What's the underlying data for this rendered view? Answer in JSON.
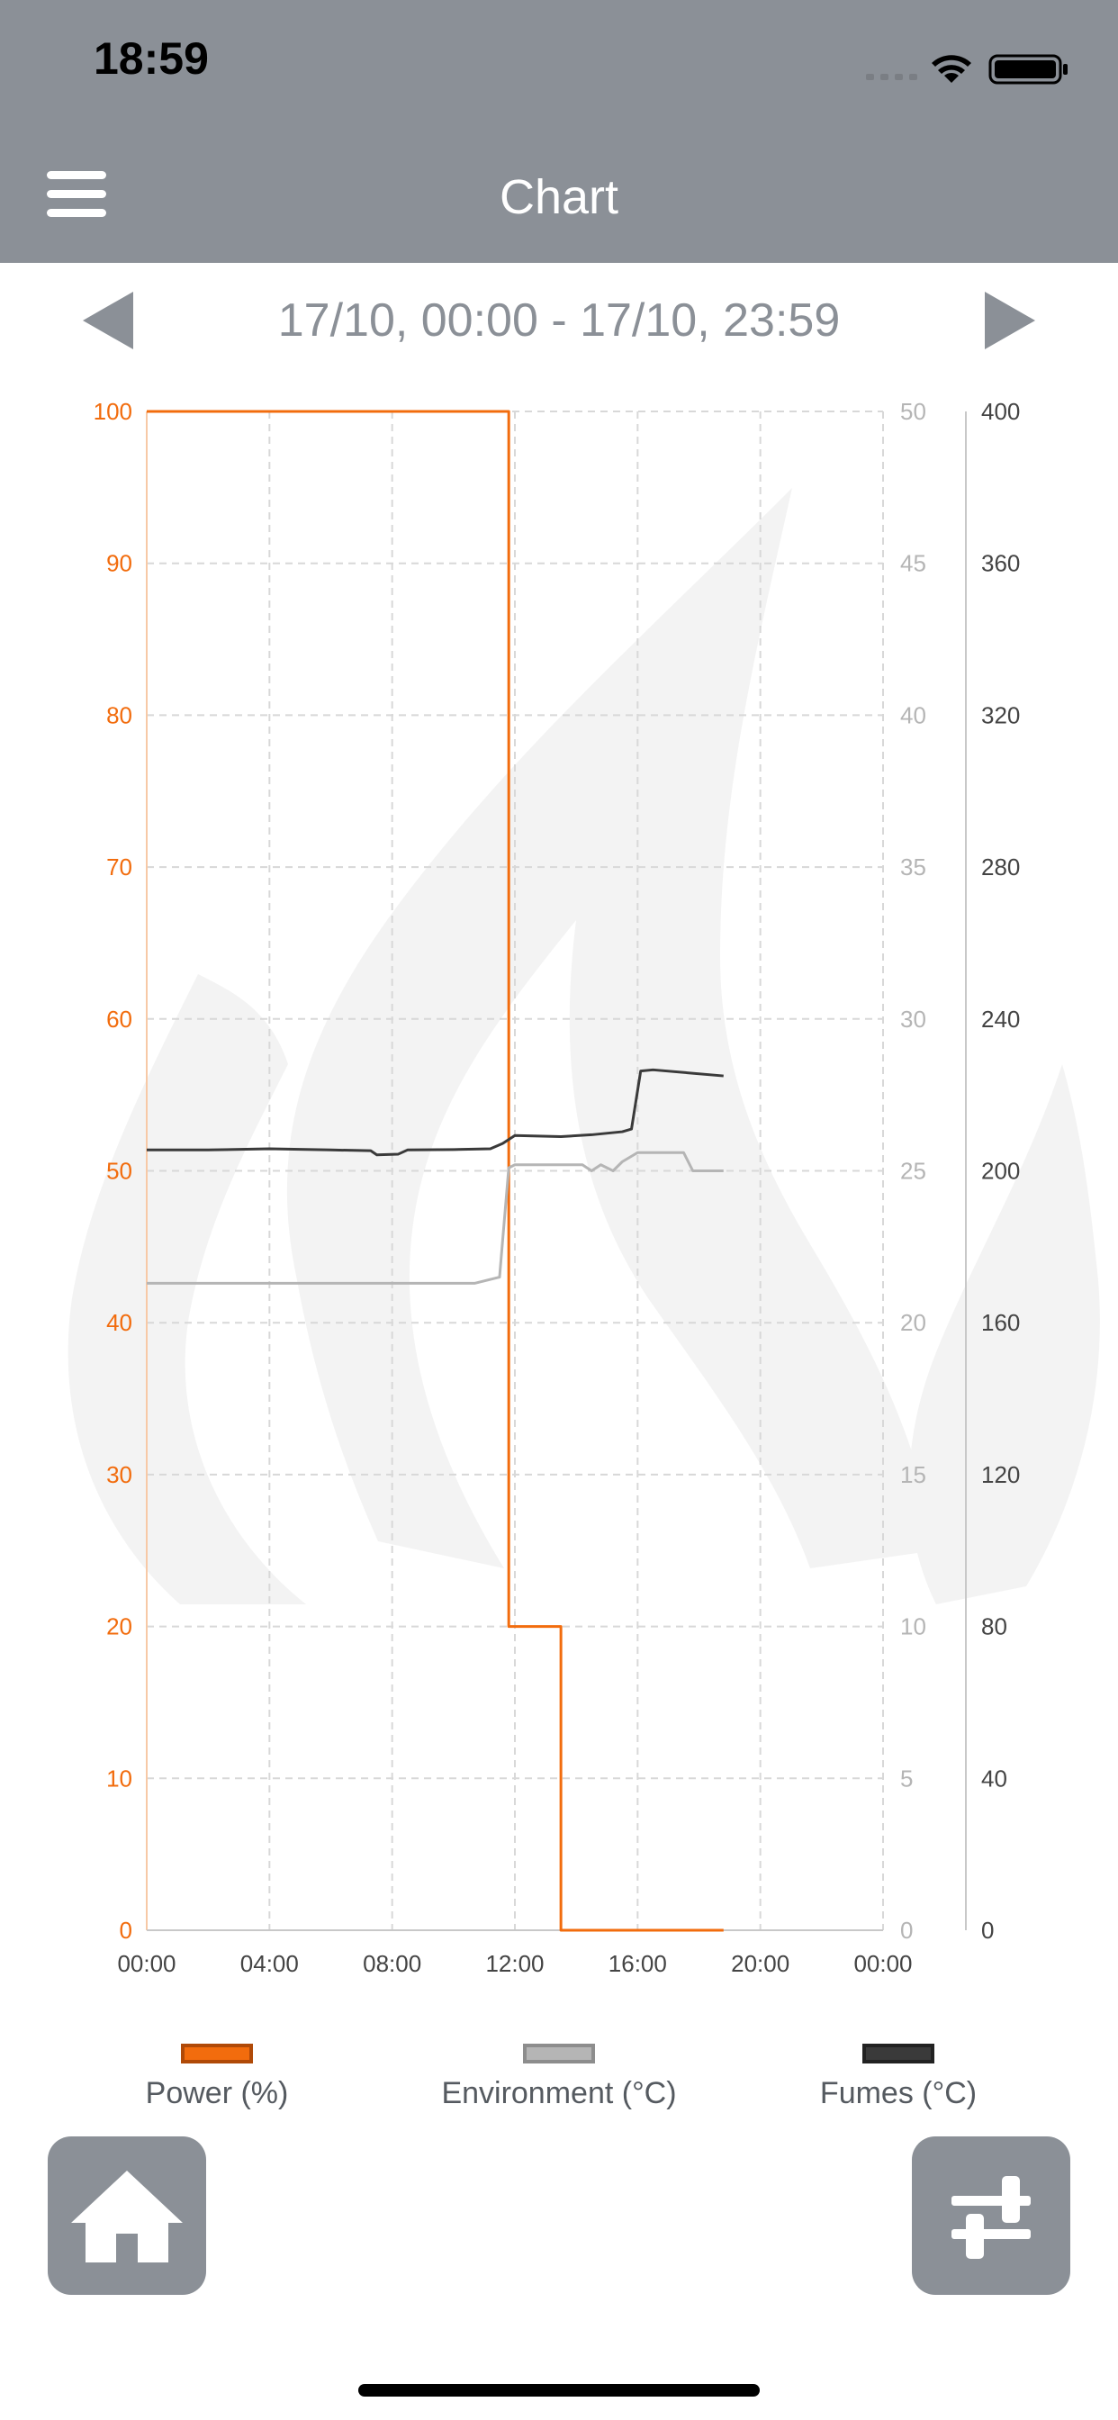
{
  "status_bar": {
    "time": "18:59"
  },
  "nav": {
    "title": "Chart"
  },
  "date_range": "17/10, 00:00 - 17/10, 23:59",
  "colors": {
    "power": "#f26c0d",
    "environment": "#b5b5b5",
    "fumes": "#3a3a3a",
    "chrome": "#8b9097"
  },
  "icons": {
    "menu": "hamburger-icon",
    "prev": "triangle-left-icon",
    "next": "triangle-right-icon",
    "home": "home-icon",
    "settings": "sliders-icon"
  },
  "chart_data": {
    "type": "line",
    "x_axis": {
      "ticks": [
        "00:00",
        "04:00",
        "08:00",
        "12:00",
        "16:00",
        "20:00",
        "00:00"
      ],
      "range_hours": [
        0,
        24
      ]
    },
    "y_axes": [
      {
        "id": "power",
        "side": "left",
        "range": [
          0,
          100
        ],
        "ticks": [
          "0",
          "10",
          "20",
          "30",
          "40",
          "50",
          "60",
          "70",
          "80",
          "90",
          "100"
        ]
      },
      {
        "id": "environment",
        "side": "right-inner",
        "range": [
          0,
          50
        ],
        "ticks": [
          "0",
          "5",
          "10",
          "15",
          "20",
          "25",
          "30",
          "35",
          "40",
          "45",
          "50"
        ]
      },
      {
        "id": "fumes",
        "side": "right-outer",
        "range": [
          0,
          400
        ],
        "ticks": [
          "0",
          "40",
          "80",
          "120",
          "160",
          "200",
          "240",
          "280",
          "320",
          "360",
          "400"
        ]
      }
    ],
    "grid": true,
    "series": [
      {
        "name": "Power (%)",
        "axis": "power",
        "step": true,
        "points": [
          [
            0,
            100
          ],
          [
            11.5,
            100
          ],
          [
            11.8,
            20
          ],
          [
            13.3,
            20
          ],
          [
            13.5,
            0
          ],
          [
            18.8,
            0
          ]
        ]
      },
      {
        "name": "Environment (°C)",
        "axis": "environment",
        "points": [
          [
            0,
            21.3
          ],
          [
            10.7,
            21.3
          ],
          [
            11.5,
            21.5
          ],
          [
            11.8,
            25.1
          ],
          [
            12.0,
            25.2
          ],
          [
            14.2,
            25.2
          ],
          [
            14.5,
            25.0
          ],
          [
            14.8,
            25.2
          ],
          [
            15.2,
            25.0
          ],
          [
            15.5,
            25.3
          ],
          [
            16.0,
            25.6
          ],
          [
            17.5,
            25.6
          ],
          [
            17.8,
            25.0
          ],
          [
            18.8,
            25.0
          ]
        ]
      },
      {
        "name": "Fumes (°C)",
        "axis": "fumes",
        "points": [
          [
            0,
            205.5
          ],
          [
            2,
            205.5
          ],
          [
            4,
            205.8
          ],
          [
            6,
            205.5
          ],
          [
            7.3,
            205.3
          ],
          [
            7.5,
            204.2
          ],
          [
            8.2,
            204.4
          ],
          [
            8.5,
            205.5
          ],
          [
            10,
            205.6
          ],
          [
            11.2,
            205.8
          ],
          [
            11.6,
            207.2
          ],
          [
            12.0,
            209.3
          ],
          [
            13.5,
            209.0
          ],
          [
            14.5,
            209.5
          ],
          [
            15.5,
            210.3
          ],
          [
            15.8,
            211.0
          ],
          [
            16.1,
            226.3
          ],
          [
            16.5,
            226.6
          ],
          [
            18.8,
            225.0
          ]
        ]
      }
    ],
    "legend": {
      "placement": "bottom",
      "entries": [
        "Power (%)",
        "Environment (°C)",
        "Fumes (°C)"
      ]
    }
  },
  "buttons": {
    "home": "Home",
    "settings": "Settings"
  }
}
